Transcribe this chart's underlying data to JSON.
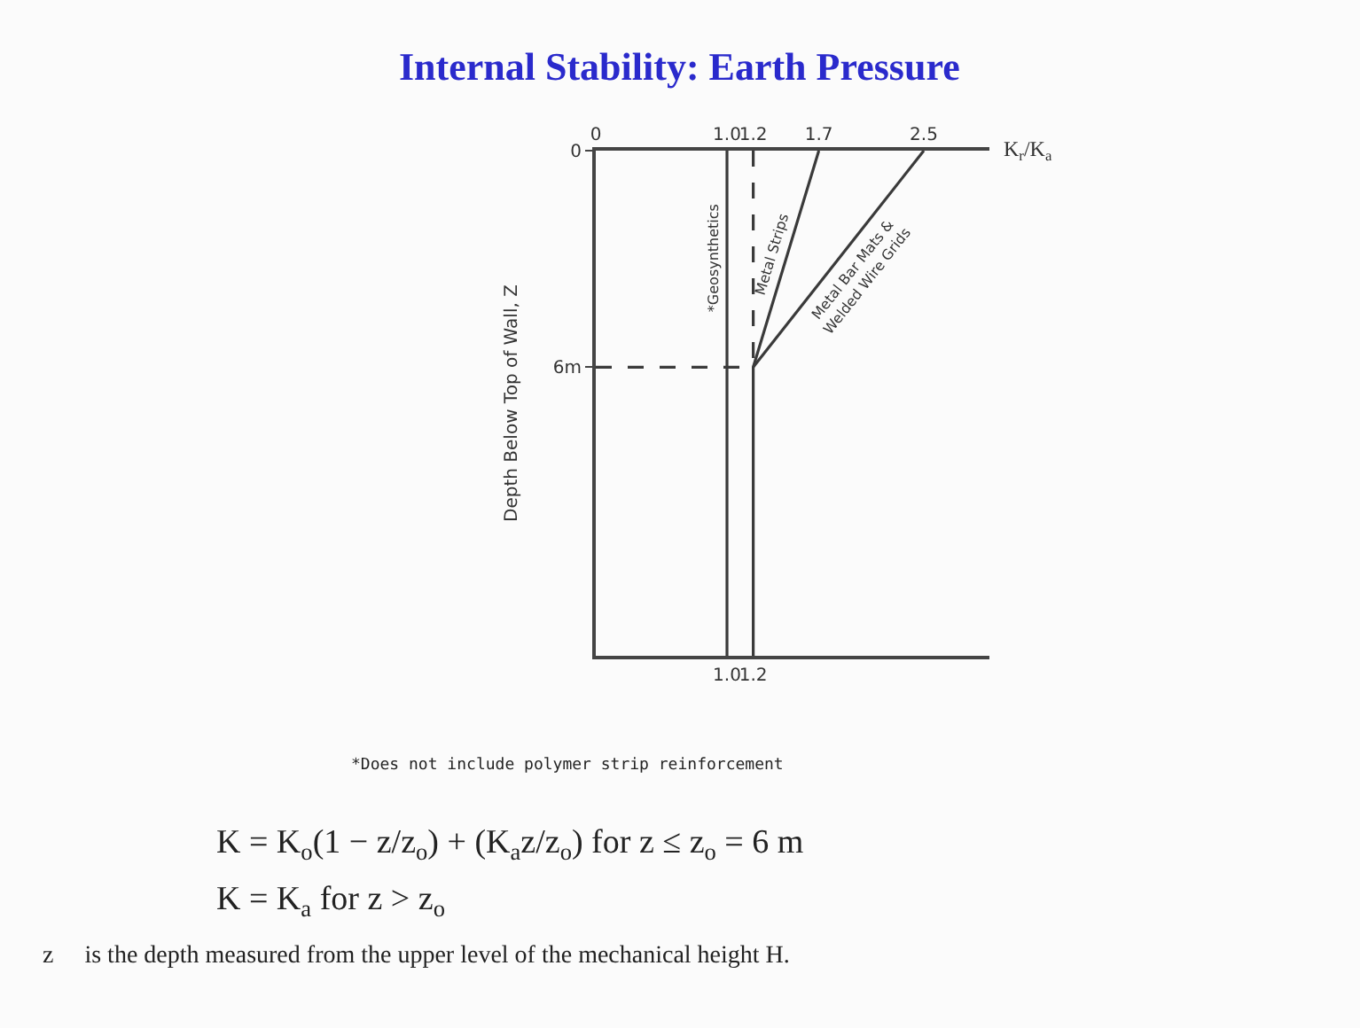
{
  "chart_data": {
    "type": "line",
    "title": "Internal Stability: Earth Pressure",
    "xlabel": "K$_{r}$/K$_{a}$",
    "ylabel": "Depth Below Top of Wall, Z",
    "series": [
      {
        "name": "*Geosynthetics",
        "color": "#3a3a3a",
        "x": [
          1.0,
          1.0
        ],
        "values": [
          0,
          14
        ]
      },
      {
        "name": "Metal Strips",
        "color": "#3a3a3a",
        "x": [
          1.7,
          1.2,
          1.2
        ],
        "values": [
          0,
          6,
          14
        ]
      },
      {
        "name": "Metal Bar Mats & Welded Wire Grids",
        "color": "#3a3a3a",
        "x": [
          2.5,
          1.2
        ],
        "values": [
          0,
          6
        ]
      },
      {
        "color": "#3a3a3a",
        "x": [
          0,
          1.2
        ],
        "values": [
          6,
          6
        ],
        "line_style": "dashed"
      },
      {
        "color": "#3a3a3a",
        "x": [
          1.2,
          1.2
        ],
        "values": [
          0,
          6
        ],
        "line_style": "dashed"
      }
    ],
    "xlim": [
      0,
      3.0
    ],
    "xticks": [
      0,
      {
        "value": 1.0,
        "label": "1.0"
      },
      {
        "value": 1.2,
        "label": "1.2"
      },
      {
        "value": 1.7,
        "label": "1.7"
      },
      {
        "value": 2.5,
        "label": "2.5"
      }
    ],
    "x2lim": [
      0,
      3.0
    ],
    "x2ticks": [
      {
        "value": 1.0,
        "label": "1.0"
      },
      {
        "value": 1.2,
        "label": "1.2"
      }
    ],
    "ylim": [
      14,
      0
    ],
    "yticks": [
      0,
      {
        "value": 6,
        "label": "6m"
      }
    ],
    "legend": false,
    "marker": "none",
    "line_style": "solid",
    "annotations": [
      "*Does not include polymer strip reinforcement",
      "K = K$_{o}$(1 − z/z$_{o}$) + (K$_{a}$z/z$_{o}$) for z ≤ z$_{o}$ = 6 m",
      "K = K$_{a}$ for z > z$_{o}$",
      "z     is the depth measured from the upper level of the mechanical height H."
    ]
  }
}
